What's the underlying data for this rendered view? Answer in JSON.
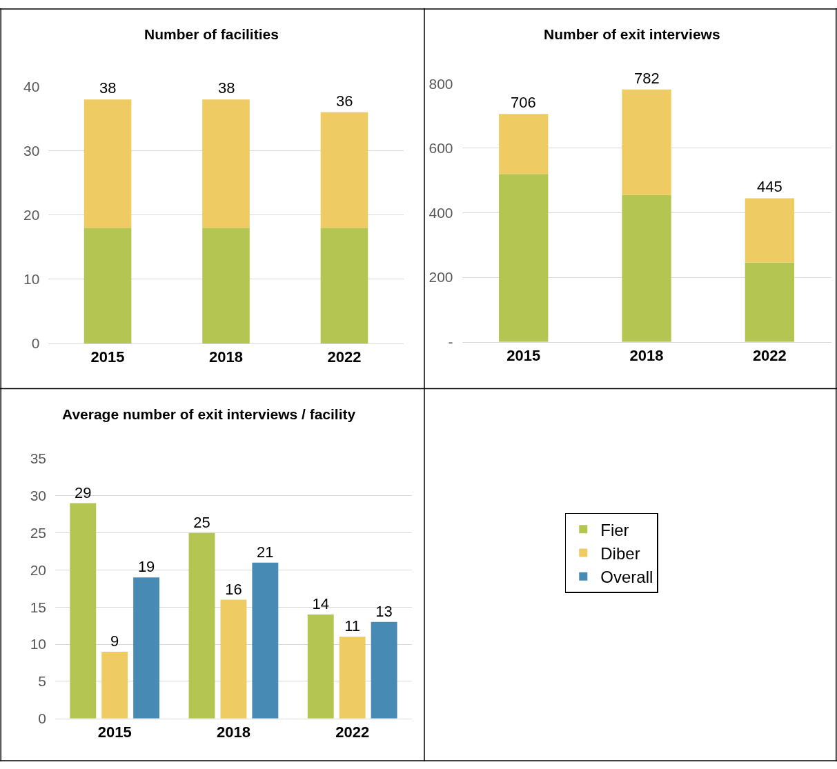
{
  "chart_data": [
    {
      "type": "bar",
      "title": "Number of facilities",
      "categories": [
        "2015",
        "2018",
        "2022"
      ],
      "stacked": true,
      "ylim": [
        0,
        40
      ],
      "yticks": [
        0,
        10,
        20,
        30,
        40
      ],
      "grid": "y",
      "legend": "right",
      "series": [
        {
          "name": "Fier",
          "color": "#b5c551",
          "values": [
            18,
            18,
            18
          ]
        },
        {
          "name": "Diber",
          "color": "#eecb63",
          "values": [
            20,
            20,
            18
          ]
        }
      ],
      "totals": [
        "38",
        "38",
        "36"
      ]
    },
    {
      "type": "bar",
      "title": "Number of exit interviews",
      "categories": [
        "2015",
        "2018",
        "2022"
      ],
      "stacked": true,
      "ylim": [
        0,
        800
      ],
      "yticks": [
        {
          "value": 0,
          "label": "-"
        },
        200,
        400,
        600,
        800
      ],
      "grid": "y",
      "legend": "right",
      "series": [
        {
          "name": "Fier",
          "color": "#b5c551",
          "values": [
            520,
            455,
            246
          ]
        },
        {
          "name": "Diber",
          "color": "#eecb63",
          "values": [
            186,
            327,
            199
          ]
        }
      ],
      "totals": [
        "706",
        "782",
        "445"
      ]
    },
    {
      "type": "bar",
      "title": "Average number of exit interviews / facility",
      "categories": [
        "2015",
        "2018",
        "2022"
      ],
      "ylim": [
        0,
        35
      ],
      "yticks": [
        0,
        5,
        10,
        15,
        20,
        25,
        30,
        35
      ],
      "grid": "y",
      "legend": "right",
      "data_labels": true,
      "series": [
        {
          "name": "Fier",
          "color": "#b5c551",
          "values": [
            29,
            25,
            14
          ]
        },
        {
          "name": "Diber",
          "color": "#eecb63",
          "values": [
            9,
            16,
            11
          ]
        },
        {
          "name": "Overall",
          "color": "#478ab3",
          "values": [
            19,
            21,
            13
          ]
        }
      ]
    }
  ]
}
